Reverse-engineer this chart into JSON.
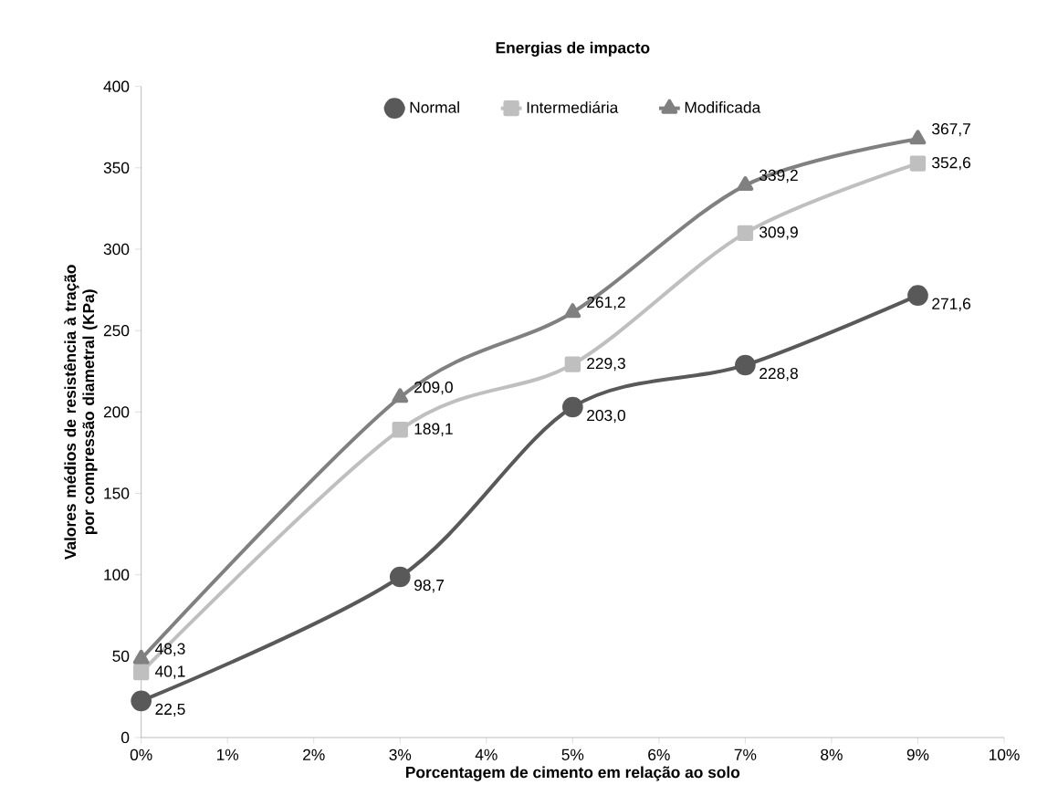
{
  "chart_data": {
    "type": "line",
    "title": "Energias de impacto",
    "xlabel": "Porcentagem de cimento em relação ao solo",
    "ylabel": "Valores médios de resistência à tração por compressão diametral (KPa)",
    "x": [
      0,
      3,
      5,
      7,
      9
    ],
    "series": [
      {
        "name": "Normal",
        "color": "#595959",
        "marker": "circle",
        "values": [
          22.5,
          98.7,
          203.0,
          228.8,
          271.6
        ],
        "value_labels": [
          "22,5",
          "98,7",
          "203,0",
          "228,8",
          "271,6"
        ]
      },
      {
        "name": "Intermediária",
        "color": "#bfbfbf",
        "marker": "square",
        "values": [
          40.1,
          189.1,
          229.3,
          309.9,
          352.6
        ],
        "value_labels": [
          "40,1",
          "189,1",
          "229,3",
          "309,9",
          "352,6"
        ]
      },
      {
        "name": "Modificada",
        "color": "#808080",
        "marker": "triangle",
        "values": [
          48.3,
          209.0,
          261.2,
          339.2,
          367.7
        ],
        "value_labels": [
          "48,3",
          "209,0",
          "261,2",
          "339,2",
          "367,7"
        ]
      }
    ],
    "xlim": [
      0,
      10
    ],
    "xticks": [
      {
        "value": 0,
        "label": "0%"
      },
      {
        "value": 1,
        "label": "1%"
      },
      {
        "value": 2,
        "label": "2%"
      },
      {
        "value": 3,
        "label": "3%"
      },
      {
        "value": 4,
        "label": "4%"
      },
      {
        "value": 5,
        "label": "5%"
      },
      {
        "value": 6,
        "label": "6%"
      },
      {
        "value": 7,
        "label": "7%"
      },
      {
        "value": 8,
        "label": "8%"
      },
      {
        "value": 9,
        "label": "9%"
      },
      {
        "value": 10,
        "label": "10%"
      }
    ],
    "ylim": [
      0,
      400
    ],
    "yticks": [
      0,
      50,
      100,
      150,
      200,
      250,
      300,
      350,
      400
    ],
    "grid": false,
    "legend": "top",
    "line_style": "solid"
  }
}
